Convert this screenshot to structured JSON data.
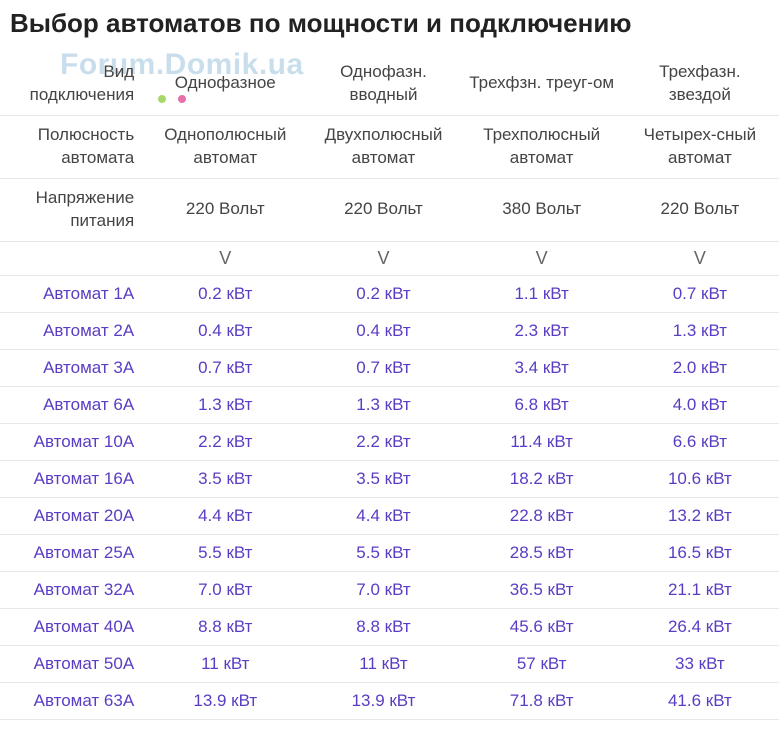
{
  "title": "Выбор автоматов по мощности и подключению",
  "watermark": {
    "text": "Forum.Domik.ua",
    "color": "rgba(100,160,200,0.35)",
    "dot_colors": [
      "#a8d86a",
      "#e86fa8"
    ]
  },
  "colors": {
    "link": "#5b3cc4",
    "text": "#333333",
    "border": "#e8e8e8",
    "background": "#ffffff"
  },
  "table": {
    "header_rows": [
      {
        "label": "Вид подключения",
        "cols": [
          "Однофазное",
          "Однофазн. вводный",
          "Трехфзн. треуг-ом",
          "Трехфазн. звездой"
        ]
      },
      {
        "label": "Полюсность автомата",
        "cols": [
          "Однополюсный автомат",
          "Двухполюсный автомат",
          "Трехполюсный автомат",
          "Четырех-сный автомат"
        ]
      },
      {
        "label": "Напряжение питания",
        "cols": [
          "220 Вольт",
          "220 Вольт",
          "380 Вольт",
          "220 Вольт"
        ]
      }
    ],
    "expand_glyph": "V",
    "rows": [
      {
        "label": "Автомат 1А",
        "vals": [
          "0.2 кВт",
          "0.2 кВт",
          "1.1 кВт",
          "0.7 кВт"
        ]
      },
      {
        "label": "Автомат 2А",
        "vals": [
          "0.4 кВт",
          "0.4 кВт",
          "2.3 кВт",
          "1.3 кВт"
        ]
      },
      {
        "label": "Автомат 3А",
        "vals": [
          "0.7 кВт",
          "0.7 кВт",
          "3.4 кВт",
          "2.0 кВт"
        ]
      },
      {
        "label": "Автомат 6А",
        "vals": [
          "1.3 кВт",
          "1.3 кВт",
          "6.8 кВт",
          "4.0 кВт"
        ]
      },
      {
        "label": "Автомат 10А",
        "vals": [
          "2.2 кВт",
          "2.2 кВт",
          "11.4 кВт",
          "6.6 кВт"
        ]
      },
      {
        "label": "Автомат 16А",
        "vals": [
          "3.5 кВт",
          "3.5 кВт",
          "18.2 кВт",
          "10.6 кВт"
        ]
      },
      {
        "label": "Автомат 20А",
        "vals": [
          "4.4 кВт",
          "4.4 кВт",
          "22.8 кВт",
          "13.2 кВт"
        ]
      },
      {
        "label": "Автомат 25А",
        "vals": [
          "5.5 кВт",
          "5.5 кВт",
          "28.5 кВт",
          "16.5 кВт"
        ]
      },
      {
        "label": "Автомат 32А",
        "vals": [
          "7.0 кВт",
          "7.0 кВт",
          "36.5 кВт",
          "21.1 кВт"
        ]
      },
      {
        "label": "Автомат 40А",
        "vals": [
          "8.8 кВт",
          "8.8 кВт",
          "45.6 кВт",
          "26.4 кВт"
        ]
      },
      {
        "label": "Автомат 50А",
        "vals": [
          "11 кВт",
          "11 кВт",
          "57 кВт",
          "33 кВт"
        ]
      },
      {
        "label": "Автомат 63А",
        "vals": [
          "13.9 кВт",
          "13.9 кВт",
          "71.8 кВт",
          "41.6 кВт"
        ]
      }
    ]
  }
}
